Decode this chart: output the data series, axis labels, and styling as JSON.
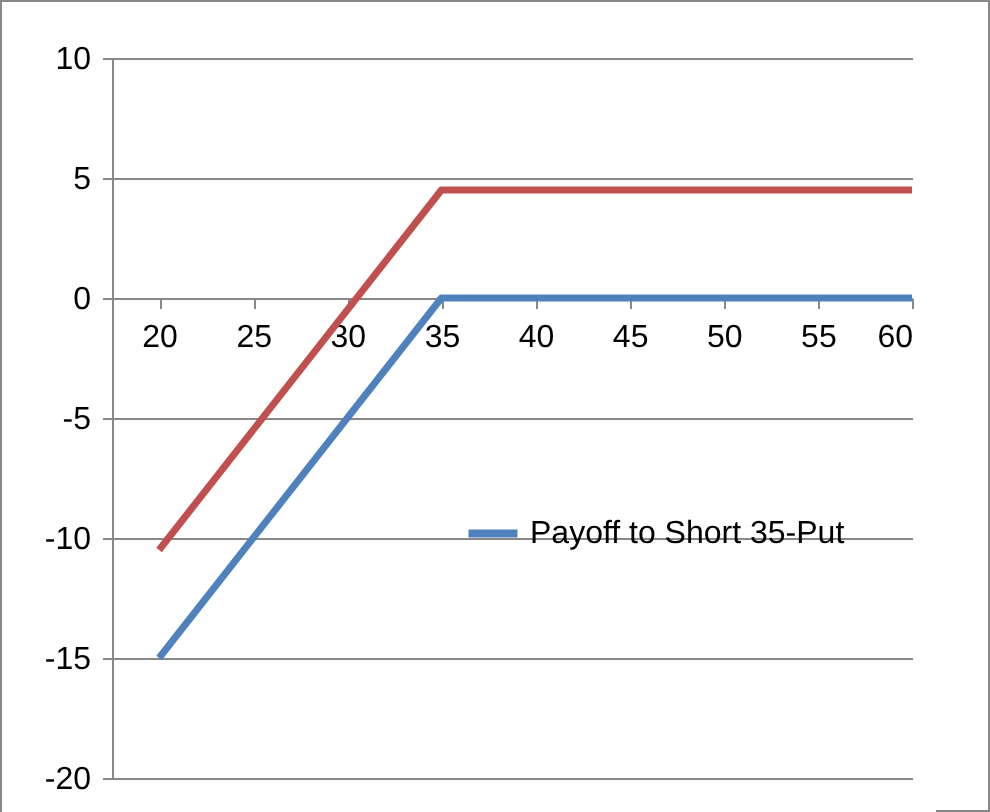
{
  "chart_data": {
    "type": "line",
    "xlim": [
      17.5,
      60
    ],
    "xticks": [
      20,
      25,
      30,
      35,
      40,
      45,
      50,
      55,
      60
    ],
    "ylim": [
      -20,
      10
    ],
    "yticks": [
      -20,
      -15,
      -10,
      -5,
      0,
      5,
      10
    ],
    "grid": "y",
    "legend": "right",
    "marker": "none",
    "line_style": "solid",
    "series": [
      {
        "name": "Payoff to Short 35-Put",
        "color": "#4f81bd",
        "x": [
          20,
          35,
          60
        ],
        "values": [
          -15,
          0,
          0
        ]
      },
      {
        "color": "#c0504d",
        "x": [
          20,
          35,
          60
        ],
        "values": [
          -10.5,
          4.5,
          4.5
        ]
      }
    ]
  }
}
